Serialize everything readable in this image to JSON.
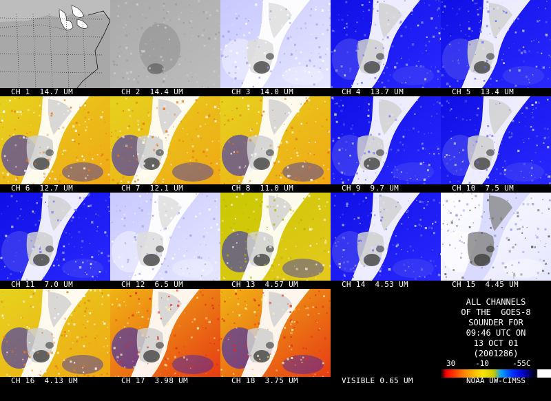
{
  "panels": [
    {
      "label": "CH 1  14.7 UM",
      "style": "map"
    },
    {
      "label": "CH 2  14.4 UM",
      "style": "gray"
    },
    {
      "label": "CH 3  14.0 UM",
      "style": "pale"
    },
    {
      "label": "CH 4  13.7 UM",
      "style": "blue"
    },
    {
      "label": "CH 5  13.4 UM",
      "style": "blue"
    },
    {
      "label": "CH 6  12.7 UM",
      "style": "warm"
    },
    {
      "label": "CH 7  12.1 UM",
      "style": "warm"
    },
    {
      "label": "CH 8  11.0 UM",
      "style": "warm"
    },
    {
      "label": "CH 9  9.7 UM",
      "style": "blue"
    },
    {
      "label": "CH 10  7.5 UM",
      "style": "blue"
    },
    {
      "label": "CH 11  7.0 UM",
      "style": "blue"
    },
    {
      "label": "CH 12  6.5 UM",
      "style": "pale"
    },
    {
      "label": "CH 13  4.57 UM",
      "style": "olive"
    },
    {
      "label": "CH 14  4.53 UM",
      "style": "blue"
    },
    {
      "label": "CH 15  4.45 UM",
      "style": "white"
    },
    {
      "label": "CH 16  4.13 UM",
      "style": "warm"
    },
    {
      "label": "CH 17  3.98 UM",
      "style": "hot"
    },
    {
      "label": "CH 18  3.75 UM",
      "style": "hot"
    },
    {
      "label": "VISIBLE 0.65 UM",
      "style": "black"
    }
  ],
  "info": {
    "lines": [
      "ALL CHANNELS",
      "OF THE  GOES-8",
      "SOUNDER FOR",
      "09:46 UTC ON",
      "13 OCT 01",
      "(2001286)"
    ],
    "scale": {
      "max": "30",
      "mid": "-10",
      "min": "-55C"
    },
    "credit": "NOAA UW-CIMSS"
  },
  "colors": {
    "background": "#000000",
    "cold": "#1a1ae6",
    "warm_yellow": "#e6d21e",
    "hot_red": "#e62814",
    "cloud": "#ffffff"
  }
}
